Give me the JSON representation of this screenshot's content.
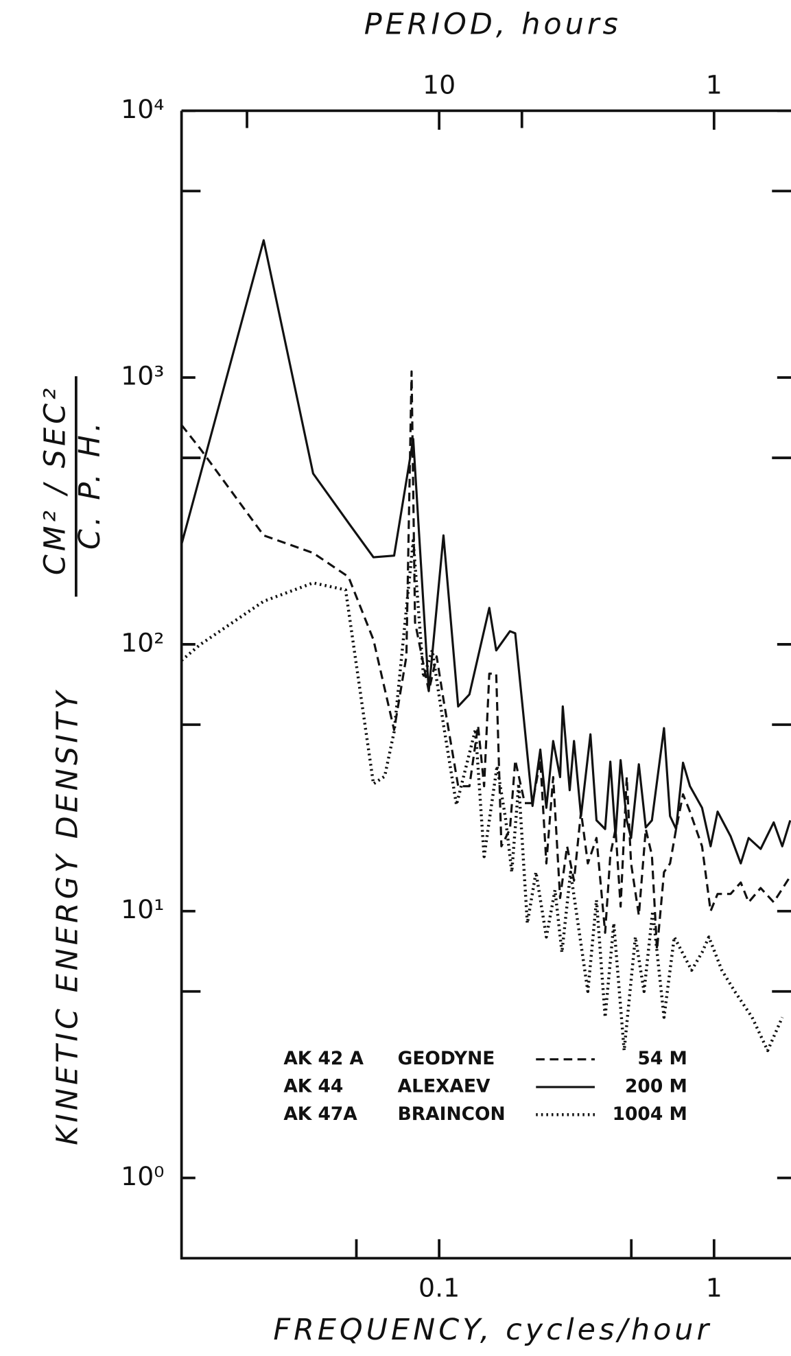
{
  "chart_data": {
    "type": "line",
    "x2label": "PERIOD, hours",
    "xlabel": "FREQUENCY, cycles/hour",
    "ylabel": "KINETIC ENERGY DENSITY",
    "ylabel_unit_top": "CM² / SEC²",
    "ylabel_unit_bottom": "C. P. H.",
    "xscale": "log",
    "yscale": "log",
    "xlim": [
      0.01156,
      1.905
    ],
    "ylim": [
      0.5,
      10000
    ],
    "xticks": [
      0.1,
      1
    ],
    "xminorticks": [
      0.05,
      0.5
    ],
    "x2ticks": [
      10,
      1
    ],
    "x2minorticks": [
      50,
      5
    ],
    "yticks": [
      {
        "value": 10000,
        "label": "10⁴"
      },
      {
        "value": 1000,
        "label": "10³"
      },
      {
        "value": 100,
        "label": "10²"
      },
      {
        "value": 10,
        "label": "10¹"
      },
      {
        "value": 1,
        "label": "10⁰"
      }
    ],
    "yminorticks": [
      5000,
      500,
      50,
      5
    ],
    "series": [
      {
        "station": "AK 42 A",
        "name": "GEODYNE",
        "depth": "54 M",
        "color": "#111111",
        "dash": "dashed",
        "x": [
          0.01156,
          0.01355,
          0.023,
          0.0348,
          0.0468,
          0.0577,
          0.0686,
          0.076,
          0.0794,
          0.0817,
          0.0917,
          0.0979,
          0.1037,
          0.1173,
          0.1289,
          0.1385,
          0.1457,
          0.1522,
          0.1613,
          0.1684,
          0.181,
          0.1892,
          0.2048,
          0.2186,
          0.2333,
          0.2454,
          0.26,
          0.2755,
          0.2921,
          0.3095,
          0.3281,
          0.3475,
          0.3735,
          0.4015,
          0.4195,
          0.4381,
          0.4573,
          0.4813,
          0.4991,
          0.5325,
          0.5646,
          0.594,
          0.6203,
          0.6577,
          0.6918,
          0.7275,
          0.7713,
          0.8173,
          0.904,
          0.9712,
          1.0302,
          1.1482,
          1.2512,
          1.3359,
          1.4779,
          1.6482,
          1.8923
        ],
        "values": [
          664,
          539,
          256,
          220,
          179,
          104,
          47.8,
          90.1,
          1054,
          121,
          66.8,
          90.1,
          62.1,
          29.4,
          29.4,
          49.6,
          29.4,
          77.6,
          77.6,
          17.5,
          20.3,
          36.8,
          25.4,
          25.4,
          36.8,
          15.1,
          31.8,
          11.2,
          17.5,
          13.0,
          23.6,
          15.1,
          18.8,
          8.3,
          16.2,
          20.3,
          10.4,
          31.8,
          15.1,
          9.64,
          20.3,
          16.2,
          7.15,
          14.0,
          15.1,
          20.3,
          27.4,
          23.6,
          17.5,
          10.0,
          11.6,
          11.6,
          12.8,
          10.8,
          12.2,
          10.8,
          13.5
        ]
      },
      {
        "station": "AK 44",
        "name": "ALEXAEV",
        "depth": "200 M",
        "color": "#111111",
        "dash": "solid",
        "x": [
          0.01156,
          0.023,
          0.0348,
          0.0474,
          0.0577,
          0.0686,
          0.0805,
          0.0917,
          0.1037,
          0.1173,
          0.1289,
          0.1522,
          0.1613,
          0.181,
          0.1892,
          0.2048,
          0.2186,
          0.2333,
          0.2454,
          0.26,
          0.2755,
          0.2817,
          0.2985,
          0.3095,
          0.3281,
          0.3551,
          0.3735,
          0.4015,
          0.4195,
          0.4381,
          0.4573,
          0.4813,
          0.4991,
          0.5325,
          0.5646,
          0.594,
          0.6577,
          0.6918,
          0.7275,
          0.7713,
          0.8173,
          0.904,
          0.9712,
          1.0302,
          1.1482,
          1.2512,
          1.3359,
          1.4779,
          1.6482,
          1.7708,
          1.8923
        ],
        "values": [
          237,
          3270,
          437,
          280,
          212,
          215,
          589,
          66.8,
          256,
          58.5,
          64.9,
          137,
          94.9,
          112,
          110,
          48.5,
          24.8,
          40.3,
          24.4,
          43.4,
          31.8,
          58.5,
          28.4,
          43.4,
          22.7,
          46.0,
          21.9,
          20.3,
          36.3,
          19.1,
          36.8,
          21.9,
          18.8,
          35.5,
          20.6,
          21.9,
          48.5,
          22.7,
          20.3,
          36.0,
          29.4,
          24.4,
          17.5,
          23.6,
          19.1,
          15.1,
          18.8,
          17.1,
          21.5,
          17.5,
          21.9
        ]
      },
      {
        "station": "AK 47A",
        "name": "BRAINCON",
        "depth": "1004 M",
        "color": "#111111",
        "dash": "dotted",
        "x": [
          0.01156,
          0.01355,
          0.023,
          0.0348,
          0.0457,
          0.0577,
          0.0634,
          0.0686,
          0.0805,
          0.0878,
          0.0944,
          0.1037,
          0.1156,
          0.1356,
          0.1457,
          0.1624,
          0.1747,
          0.1837,
          0.1947,
          0.2093,
          0.225,
          0.2454,
          0.2639,
          0.2796,
          0.3006,
          0.3475,
          0.3735,
          0.4015,
          0.4318,
          0.471,
          0.5175,
          0.5564,
          0.598,
          0.6577,
          0.7167,
          0.8283,
          0.904,
          0.9575,
          1.0673,
          1.1902,
          1.3753,
          1.5668,
          1.7708
        ],
        "values": [
          87,
          100,
          145,
          170,
          160,
          30,
          32,
          47,
          245,
          75,
          95,
          50,
          25,
          48,
          16,
          35,
          22,
          14,
          30,
          9,
          14,
          8,
          12,
          7,
          14,
          5,
          11,
          4,
          9,
          3,
          8,
          5,
          10,
          4,
          8,
          6,
          7,
          8,
          6,
          5,
          4,
          3,
          4
        ]
      }
    ]
  }
}
